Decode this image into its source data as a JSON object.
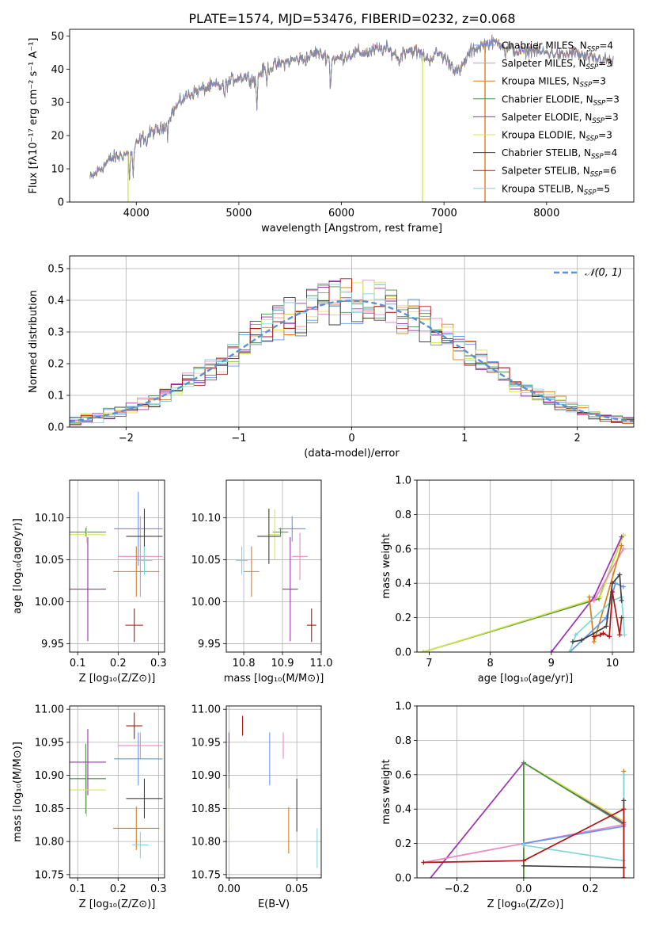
{
  "figure_title": "PLATE=1574, MJD=53476, FIBERID=0232, z=0.068",
  "colors": {
    "Chabrier MILES": "#6495ed",
    "Salpeter MILES": "#e78ac3",
    "Kroupa MILES": "#e07b1a",
    "Chabrier ELODIE": "#4a8c4a",
    "Salpeter ELODIE": "#9b30b0",
    "Kroupa ELODIE": "#d6e64a",
    "Chabrier STELIB": "#404040",
    "Salpeter STELIB": "#b01515",
    "Kroupa STELIB": "#7fd6d6",
    "normal_curve": "#5b8fd6"
  },
  "chart_data": [
    {
      "id": "spectrum",
      "type": "line",
      "title": "PLATE=1574, MJD=53476, FIBERID=0232, z=0.068",
      "xlabel": "wavelength [Angstrom, rest frame]",
      "ylabel": "Flux [fλ10⁻¹⁷ erg cm⁻² s⁻¹ A⁻¹]",
      "xlim": [
        3350,
        8850
      ],
      "ylim": [
        0,
        52
      ],
      "xticks": [
        4000,
        5000,
        6000,
        7000,
        8000
      ],
      "yticks": [
        0,
        10,
        20,
        30,
        40,
        50
      ],
      "legend_position": "right",
      "legend": [
        {
          "label": "Chabrier MILES, N",
          "sub": "SSP",
          "suffix": "=4",
          "color_key": "Chabrier MILES"
        },
        {
          "label": "Salpeter MILES, N",
          "sub": "SSP",
          "suffix": "=3",
          "color_key": "Salpeter MILES"
        },
        {
          "label": "Kroupa MILES, N",
          "sub": "SSP",
          "suffix": "=3",
          "color_key": "Kroupa MILES"
        },
        {
          "label": "Chabrier ELODIE, N",
          "sub": "SSP",
          "suffix": "=3",
          "color_key": "Chabrier ELODIE"
        },
        {
          "label": "Salpeter ELODIE, N",
          "sub": "SSP",
          "suffix": "=3",
          "color_key": "Salpeter ELODIE"
        },
        {
          "label": "Kroupa ELODIE, N",
          "sub": "SSP",
          "suffix": "=3",
          "color_key": "Kroupa ELODIE"
        },
        {
          "label": "Chabrier STELIB, N",
          "sub": "SSP",
          "suffix": "=4",
          "color_key": "Chabrier STELIB"
        },
        {
          "label": "Salpeter STELIB, N",
          "sub": "SSP",
          "suffix": "=6",
          "color_key": "Salpeter STELIB"
        },
        {
          "label": "Kroupa STELIB, N",
          "sub": "SSP",
          "suffix": "=5",
          "color_key": "Kroupa STELIB"
        }
      ],
      "continuum": [
        [
          3550,
          7
        ],
        [
          3650,
          10
        ],
        [
          3750,
          13
        ],
        [
          3850,
          14
        ],
        [
          3950,
          15
        ],
        [
          4050,
          19
        ],
        [
          4150,
          21
        ],
        [
          4250,
          22
        ],
        [
          4350,
          27
        ],
        [
          4450,
          31
        ],
        [
          4550,
          33
        ],
        [
          4650,
          34
        ],
        [
          4750,
          35
        ],
        [
          4850,
          35
        ],
        [
          4950,
          37
        ],
        [
          5050,
          38
        ],
        [
          5150,
          37
        ],
        [
          5250,
          40
        ],
        [
          5350,
          41
        ],
        [
          5450,
          42
        ],
        [
          5550,
          43
        ],
        [
          5650,
          43
        ],
        [
          5750,
          45
        ],
        [
          5850,
          44
        ],
        [
          5950,
          43
        ],
        [
          6050,
          44
        ],
        [
          6150,
          45
        ],
        [
          6250,
          45
        ],
        [
          6350,
          46
        ],
        [
          6450,
          46
        ],
        [
          6550,
          44
        ],
        [
          6650,
          46
        ],
        [
          6750,
          45
        ],
        [
          6850,
          43
        ],
        [
          6950,
          45
        ],
        [
          7050,
          42
        ],
        [
          7150,
          39
        ],
        [
          7250,
          45
        ],
        [
          7350,
          47
        ],
        [
          7450,
          48
        ],
        [
          7550,
          48
        ],
        [
          7650,
          46
        ],
        [
          7750,
          45
        ],
        [
          7850,
          46
        ],
        [
          7950,
          45
        ],
        [
          8050,
          45
        ],
        [
          8150,
          44
        ],
        [
          8250,
          45
        ],
        [
          8350,
          44
        ],
        [
          8450,
          43
        ],
        [
          8550,
          43
        ],
        [
          8650,
          42
        ]
      ],
      "absorption_features": [
        [
          3934,
          0.55
        ],
        [
          3969,
          0.5
        ],
        [
          4102,
          0.85
        ],
        [
          4305,
          0.82
        ],
        [
          4861,
          0.9
        ],
        [
          5175,
          0.75
        ],
        [
          5270,
          0.9
        ],
        [
          5893,
          0.78
        ],
        [
          6563,
          0.92
        ],
        [
          7600,
          0.93
        ]
      ],
      "dropouts": [
        {
          "x": 3920,
          "color_key": "Kroupa ELODIE"
        },
        {
          "x": 6790,
          "color_key": "Kroupa ELODIE"
        },
        {
          "x": 7400,
          "color_key": "Kroupa MILES"
        }
      ]
    },
    {
      "id": "residuals",
      "type": "step",
      "xlabel": "(data-model)/error",
      "ylabel": "Normed distribution",
      "xlim": [
        -2.5,
        2.5
      ],
      "ylim": [
        0,
        0.54
      ],
      "xticks": [
        -2,
        -1,
        0,
        1,
        2
      ],
      "yticks": [
        0.0,
        0.1,
        0.2,
        0.3,
        0.4,
        0.5
      ],
      "grid": true,
      "legend_position": "top-right",
      "normal_label": "𝒩(0, 1)",
      "bin_width": 0.1
    },
    {
      "id": "age_vs_Z",
      "type": "errorbar",
      "xlabel": "Z [log₁₀(Z/Z⊙)]",
      "ylabel": "age  [log₁₀(age/yr)]",
      "xlim": [
        0.08,
        0.315
      ],
      "ylim": [
        9.94,
        10.145
      ],
      "xticks": [
        0.1,
        0.2,
        0.3
      ],
      "yticks": [
        9.95,
        10.0,
        10.05,
        10.1
      ],
      "grid": true,
      "points": [
        {
          "k": "Chabrier MILES",
          "x": 0.25,
          "y": 10.087,
          "ex": 0.06,
          "ey": 0.044
        },
        {
          "k": "Salpeter MILES",
          "x": 0.255,
          "y": 10.054,
          "ex": 0.055,
          "ey": 0.048
        },
        {
          "k": "Kroupa MILES",
          "x": 0.245,
          "y": 10.036,
          "ex": 0.057,
          "ey": 0.03
        },
        {
          "k": "Chabrier ELODIE",
          "x": 0.12,
          "y": 10.083,
          "ex": 0.05,
          "ey": 0.005
        },
        {
          "k": "Salpeter ELODIE",
          "x": 0.125,
          "y": 10.015,
          "ex": 0.045,
          "ey": 0.062
        },
        {
          "k": "Kroupa ELODIE",
          "x": 0.122,
          "y": 10.08,
          "ex": 0.048,
          "ey": 0.01
        },
        {
          "k": "Chabrier STELIB",
          "x": 0.265,
          "y": 10.078,
          "ex": 0.045,
          "ey": 0.033
        },
        {
          "k": "Salpeter STELIB",
          "x": 0.24,
          "y": 9.972,
          "ex": 0.022,
          "ey": 0.02
        },
        {
          "k": "Kroupa STELIB",
          "x": 0.265,
          "y": 10.049,
          "ex": 0.02,
          "ey": 0.017
        }
      ]
    },
    {
      "id": "age_vs_mass",
      "type": "errorbar",
      "xlabel": "mass [log₁₀(M/M⊙)]",
      "ylabel": "",
      "xlim": [
        10.755,
        11.0
      ],
      "ylim": [
        9.94,
        10.145
      ],
      "xticks": [
        10.8,
        10.9
      ],
      "extra_xtick_label": "11.0",
      "yticks": [
        9.95,
        10.0,
        10.05,
        10.1
      ],
      "grid": true,
      "points": [
        {
          "k": "Chabrier MILES",
          "x": 10.925,
          "y": 10.087,
          "ex": 0.035,
          "ey": 0.015
        },
        {
          "k": "Salpeter MILES",
          "x": 10.945,
          "y": 10.054,
          "ex": 0.02,
          "ey": 0.028
        },
        {
          "k": "Kroupa MILES",
          "x": 10.82,
          "y": 10.036,
          "ex": 0.02,
          "ey": 0.03
        },
        {
          "k": "Chabrier ELODIE",
          "x": 10.895,
          "y": 10.083,
          "ex": 0.02,
          "ey": 0.005
        },
        {
          "k": "Salpeter ELODIE",
          "x": 10.92,
          "y": 10.015,
          "ex": 0.02,
          "ey": 0.062
        },
        {
          "k": "Kroupa ELODIE",
          "x": 10.88,
          "y": 10.08,
          "ex": 0.015,
          "ey": 0.03
        },
        {
          "k": "Chabrier STELIB",
          "x": 10.865,
          "y": 10.078,
          "ex": 0.03,
          "ey": 0.033
        },
        {
          "k": "Salpeter STELIB",
          "x": 10.975,
          "y": 9.972,
          "ex": 0.012,
          "ey": 0.02
        },
        {
          "k": "Kroupa STELIB",
          "x": 10.795,
          "y": 10.049,
          "ex": 0.015,
          "ey": 0.017
        }
      ]
    },
    {
      "id": "mass_weight_vs_age",
      "type": "line",
      "xlabel": "age  [log₁₀(age/yr)]",
      "ylabel": "mass weight",
      "xlim": [
        6.8,
        10.35
      ],
      "ylim": [
        0,
        1
      ],
      "xticks": [
        7,
        8,
        9,
        10
      ],
      "yticks": [
        0.0,
        0.2,
        0.4,
        0.6,
        0.8,
        1.0
      ],
      "grid": true,
      "series": [
        {
          "k": "Chabrier ELODIE",
          "x": [
            6.9,
            9.78,
            10.18
          ],
          "y": [
            0.0,
            0.31,
            0.68
          ]
        },
        {
          "k": "Kroupa ELODIE",
          "x": [
            6.9,
            9.8,
            10.18
          ],
          "y": [
            0.0,
            0.32,
            0.68
          ]
        },
        {
          "k": "Salpeter ELODIE",
          "x": [
            9.0,
            9.7,
            10.15
          ],
          "y": [
            0.0,
            0.32,
            0.67
          ]
        },
        {
          "k": "Salpeter MILES",
          "x": [
            9.7,
            10.18
          ],
          "y": [
            0.3,
            0.6
          ]
        },
        {
          "k": "Kroupa MILES",
          "x": [
            9.62,
            9.7,
            10.15
          ],
          "y": [
            0.32,
            0.06,
            0.62
          ]
        },
        {
          "k": "Chabrier MILES",
          "x": [
            9.3,
            9.9,
            10.05,
            10.18
          ],
          "y": [
            0.0,
            0.2,
            0.4,
            0.38
          ]
        },
        {
          "k": "Kroupa STELIB",
          "x": [
            9.3,
            9.4,
            10.0,
            10.15,
            10.2
          ],
          "y": [
            0.0,
            0.1,
            0.3,
            0.32,
            0.1
          ]
        },
        {
          "k": "Chabrier STELIB",
          "x": [
            9.35,
            9.5,
            9.9,
            10.0,
            10.12,
            10.15
          ],
          "y": [
            0.06,
            0.07,
            0.15,
            0.4,
            0.45,
            0.3
          ]
        },
        {
          "k": "Salpeter STELIB",
          "x": [
            9.7,
            9.8,
            9.85,
            9.95,
            10.0,
            10.12,
            10.15
          ],
          "y": [
            0.09,
            0.1,
            0.11,
            0.09,
            0.35,
            0.1,
            0.2
          ]
        }
      ]
    },
    {
      "id": "mass_vs_Z",
      "type": "errorbar",
      "xlabel": "Z [log₁₀(Z/Z⊙)]",
      "ylabel": "mass [log₁₀(M/M⊙)]",
      "xlim": [
        0.08,
        0.315
      ],
      "ylim": [
        10.745,
        11.005
      ],
      "xticks": [
        0.1,
        0.2,
        0.3
      ],
      "yticks": [
        10.75,
        10.8,
        10.85,
        10.9,
        10.95,
        11.0
      ],
      "grid": true,
      "points": [
        {
          "k": "Chabrier MILES",
          "x": 0.25,
          "y": 10.925,
          "ex": 0.06,
          "ey": 0.04
        },
        {
          "k": "Salpeter MILES",
          "x": 0.255,
          "y": 10.945,
          "ex": 0.055,
          "ey": 0.02
        },
        {
          "k": "Kroupa MILES",
          "x": 0.245,
          "y": 10.82,
          "ex": 0.057,
          "ey": 0.033
        },
        {
          "k": "Chabrier ELODIE",
          "x": 0.12,
          "y": 10.895,
          "ex": 0.05,
          "ey": 0.053
        },
        {
          "k": "Salpeter ELODIE",
          "x": 0.125,
          "y": 10.92,
          "ex": 0.045,
          "ey": 0.05
        },
        {
          "k": "Kroupa ELODIE",
          "x": 0.122,
          "y": 10.878,
          "ex": 0.048,
          "ey": 0.04
        },
        {
          "k": "Chabrier STELIB",
          "x": 0.265,
          "y": 10.865,
          "ex": 0.045,
          "ey": 0.03
        },
        {
          "k": "Salpeter STELIB",
          "x": 0.24,
          "y": 10.975,
          "ex": 0.02,
          "ey": 0.02
        },
        {
          "k": "Kroupa STELIB",
          "x": 0.255,
          "y": 10.795,
          "ex": 0.02,
          "ey": 0.02
        }
      ]
    },
    {
      "id": "mass_vs_EBV",
      "type": "errorbar",
      "xlabel": "E(B-V)",
      "ylabel": "",
      "xlim": [
        -0.002,
        0.068
      ],
      "ylim": [
        10.745,
        11.005
      ],
      "xticks": [
        0.0,
        0.05
      ],
      "yticks": [
        10.75,
        10.8,
        10.85,
        10.9,
        10.95,
        11.0
      ],
      "grid": true,
      "points": [
        {
          "k": "Chabrier MILES",
          "x": 0.03,
          "y": 10.925,
          "ex": 0.0,
          "ey": 0.04
        },
        {
          "k": "Salpeter MILES",
          "x": 0.04,
          "y": 10.945,
          "ex": 0.0,
          "ey": 0.02
        },
        {
          "k": "Kroupa MILES",
          "x": 0.044,
          "y": 10.817,
          "ex": 0.0,
          "ey": 0.035
        },
        {
          "k": "Chabrier ELODIE",
          "x": 0.0,
          "y": 10.895,
          "ex": 0.0,
          "ey": 0.05
        },
        {
          "k": "Salpeter ELODIE",
          "x": 0.0,
          "y": 10.935,
          "ex": 0.0,
          "ey": 0.03
        },
        {
          "k": "Kroupa ELODIE",
          "x": 0.0,
          "y": 10.85,
          "ex": 0.0,
          "ey": 0.03
        },
        {
          "k": "Chabrier STELIB",
          "x": 0.05,
          "y": 10.855,
          "ex": 0.0,
          "ey": 0.04
        },
        {
          "k": "Salpeter STELIB",
          "x": 0.01,
          "y": 10.975,
          "ex": 0.0,
          "ey": 0.015
        },
        {
          "k": "Kroupa STELIB",
          "x": 0.065,
          "y": 10.79,
          "ex": 0.0,
          "ey": 0.03
        }
      ]
    },
    {
      "id": "mass_weight_vs_Z",
      "type": "line",
      "xlabel": "Z [log₁₀(Z/Z⊙)]",
      "ylabel": "mass weight",
      "xlim": [
        -0.32,
        0.33
      ],
      "ylim": [
        0,
        1
      ],
      "xticks": [
        -0.2,
        0.0,
        0.2
      ],
      "yticks": [
        0.0,
        0.2,
        0.4,
        0.6,
        0.8,
        1.0
      ],
      "grid": true,
      "series": [
        {
          "k": "Salpeter ELODIE",
          "x": [
            -0.3,
            0.0,
            0.3
          ],
          "y": [
            -0.05,
            0.67,
            0.32
          ]
        },
        {
          "k": "Kroupa ELODIE",
          "x": [
            0.0,
            0.0,
            0.3
          ],
          "y": [
            0.0,
            0.67,
            0.33
          ]
        },
        {
          "k": "Chabrier ELODIE",
          "x": [
            0.0,
            0.0,
            0.3
          ],
          "y": [
            0.0,
            0.67,
            0.31
          ]
        },
        {
          "k": "Salpeter MILES",
          "x": [
            -0.3,
            0.0,
            0.3
          ],
          "y": [
            0.09,
            0.2,
            0.31
          ]
        },
        {
          "k": "Kroupa MILES",
          "x": [
            0.3,
            0.3
          ],
          "y": [
            0.0,
            0.62
          ]
        },
        {
          "k": "Chabrier MILES",
          "x": [
            0.0,
            0.3,
            0.3
          ],
          "y": [
            0.2,
            0.3,
            0.0
          ]
        },
        {
          "k": "Kroupa STELIB",
          "x": [
            0.0,
            0.3,
            0.3
          ],
          "y": [
            0.19,
            0.1,
            0.6
          ]
        },
        {
          "k": "Chabrier STELIB",
          "x": [
            0.0,
            0.3,
            0.3
          ],
          "y": [
            0.07,
            0.06,
            0.45
          ]
        },
        {
          "k": "Salpeter STELIB",
          "x": [
            -0.3,
            0.0,
            0.3,
            0.3
          ],
          "y": [
            0.09,
            0.1,
            0.4,
            0.0
          ]
        }
      ]
    }
  ]
}
